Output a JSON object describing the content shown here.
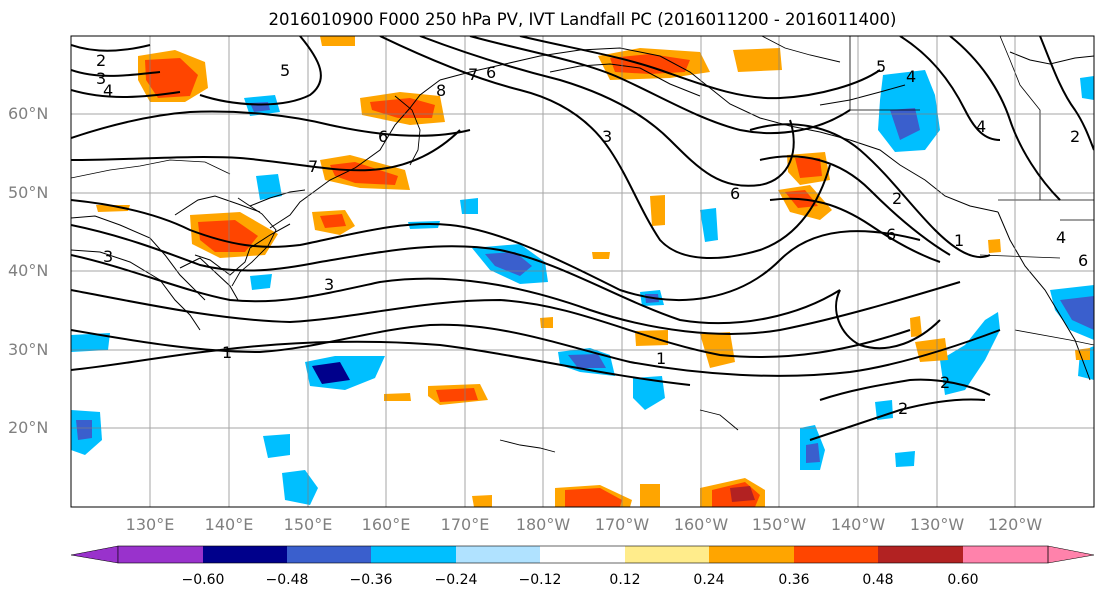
{
  "title": "2016010900 F000 250 hPa PV, IVT Landfall PC (2016011200 - 2016011400)",
  "lat_labels": [
    "60°N",
    "50°N",
    "40°N",
    "30°N",
    "20°N"
  ],
  "lon_labels": [
    "130°E",
    "140°E",
    "150°E",
    "160°E",
    "170°E",
    "180°W",
    "170°W",
    "160°W",
    "150°W",
    "140°W",
    "130°W",
    "120°W"
  ],
  "colorbar": {
    "labels": [
      "−0.60",
      "−0.48",
      "−0.36",
      "−0.24",
      "−0.12",
      "0.12",
      "0.24",
      "0.36",
      "0.48",
      "0.60"
    ],
    "colors": [
      "#9932cc",
      "#00008b",
      "#3a5fcd",
      "#00bfff",
      "#b0e2ff",
      "#ffffff",
      "#ffec8b",
      "#ffa500",
      "#ff4500",
      "#b22222",
      "#ff82ab"
    ]
  },
  "contour_labels": [
    "2",
    "3",
    "4",
    "5",
    "8",
    "7",
    "6",
    "6",
    "7",
    "3",
    "3",
    "1",
    "6",
    "5",
    "4",
    "3",
    "4",
    "2",
    "2",
    "6",
    "1",
    "4",
    "6",
    "1",
    "2",
    "2"
  ]
}
